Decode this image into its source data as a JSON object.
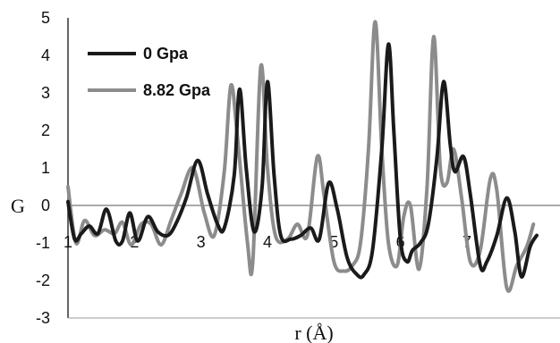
{
  "chart_data": {
    "type": "line",
    "title": "",
    "xlabel": "r (Å)",
    "ylabel": "G",
    "xlim": [
      1,
      8.4
    ],
    "ylim": [
      -3,
      5
    ],
    "x_ticks": [
      "1",
      "2",
      "3",
      "4",
      "5",
      "6",
      "7"
    ],
    "y_ticks": [
      "5",
      "4",
      "3",
      "2",
      "1",
      "0",
      "-1",
      "-2",
      "-3"
    ],
    "grid": false,
    "legend_position": "top-left",
    "series": [
      {
        "name": "0 Gpa",
        "color": "#1a1a1a",
        "points": [
          [
            1.0,
            0.1
          ],
          [
            1.1,
            -0.9
          ],
          [
            1.2,
            -0.75
          ],
          [
            1.32,
            -0.55
          ],
          [
            1.45,
            -0.75
          ],
          [
            1.58,
            -0.1
          ],
          [
            1.72,
            -0.95
          ],
          [
            1.82,
            -0.95
          ],
          [
            1.93,
            -0.2
          ],
          [
            2.05,
            -0.95
          ],
          [
            2.2,
            -0.3
          ],
          [
            2.35,
            -0.7
          ],
          [
            2.5,
            -0.8
          ],
          [
            2.62,
            -0.5
          ],
          [
            2.78,
            0.2
          ],
          [
            2.95,
            1.2
          ],
          [
            3.1,
            0.3
          ],
          [
            3.25,
            -0.5
          ],
          [
            3.35,
            -0.6
          ],
          [
            3.5,
            0.8
          ],
          [
            3.58,
            3.1
          ],
          [
            3.68,
            1.0
          ],
          [
            3.8,
            -0.7
          ],
          [
            3.92,
            0.5
          ],
          [
            4.0,
            3.3
          ],
          [
            4.1,
            0.8
          ],
          [
            4.2,
            -0.8
          ],
          [
            4.35,
            -0.9
          ],
          [
            4.5,
            -0.8
          ],
          [
            4.65,
            -0.6
          ],
          [
            4.78,
            -0.9
          ],
          [
            4.92,
            0.6
          ],
          [
            5.05,
            -0.1
          ],
          [
            5.2,
            -1.4
          ],
          [
            5.35,
            -1.85
          ],
          [
            5.45,
            -1.85
          ],
          [
            5.58,
            -1.2
          ],
          [
            5.72,
            1.5
          ],
          [
            5.82,
            4.3
          ],
          [
            5.9,
            2.0
          ],
          [
            6.0,
            -0.9
          ],
          [
            6.1,
            -1.5
          ],
          [
            6.18,
            -1.2
          ],
          [
            6.3,
            -1.0
          ],
          [
            6.42,
            -0.5
          ],
          [
            6.55,
            1.3
          ],
          [
            6.65,
            3.3
          ],
          [
            6.75,
            1.6
          ],
          [
            6.82,
            0.9
          ],
          [
            6.95,
            1.3
          ],
          [
            7.05,
            0.3
          ],
          [
            7.2,
            -1.6
          ],
          [
            7.3,
            -1.5
          ],
          [
            7.45,
            -0.8
          ],
          [
            7.6,
            0.2
          ],
          [
            7.72,
            -0.7
          ],
          [
            7.82,
            -1.9
          ],
          [
            7.95,
            -1.1
          ],
          [
            8.05,
            -0.8
          ]
        ]
      },
      {
        "name": "8.82 Gpa",
        "color": "#8c8c8c",
        "points": [
          [
            1.0,
            0.5
          ],
          [
            1.12,
            -1.0
          ],
          [
            1.25,
            -0.4
          ],
          [
            1.4,
            -0.8
          ],
          [
            1.55,
            -0.65
          ],
          [
            1.7,
            -0.75
          ],
          [
            1.82,
            -0.45
          ],
          [
            1.95,
            -1.05
          ],
          [
            2.1,
            -0.5
          ],
          [
            2.25,
            -0.5
          ],
          [
            2.4,
            -1.05
          ],
          [
            2.55,
            -0.4
          ],
          [
            2.7,
            0.3
          ],
          [
            2.88,
            1.0
          ],
          [
            3.05,
            -0.2
          ],
          [
            3.2,
            -0.8
          ],
          [
            3.35,
            0.9
          ],
          [
            3.45,
            3.2
          ],
          [
            3.55,
            1.8
          ],
          [
            3.7,
            -1.0
          ],
          [
            3.78,
            -1.5
          ],
          [
            3.9,
            3.7
          ],
          [
            4.0,
            1.0
          ],
          [
            4.12,
            -0.8
          ],
          [
            4.3,
            -0.9
          ],
          [
            4.45,
            -0.5
          ],
          [
            4.6,
            -0.8
          ],
          [
            4.75,
            1.3
          ],
          [
            4.85,
            0.3
          ],
          [
            5.0,
            -1.5
          ],
          [
            5.15,
            -1.75
          ],
          [
            5.28,
            -1.6
          ],
          [
            5.4,
            -1.0
          ],
          [
            5.52,
            1.5
          ],
          [
            5.62,
            4.9
          ],
          [
            5.72,
            1.5
          ],
          [
            5.82,
            -1.0
          ],
          [
            5.95,
            -1.6
          ],
          [
            6.05,
            -0.3
          ],
          [
            6.15,
            0.0
          ],
          [
            6.28,
            -1.7
          ],
          [
            6.4,
            0.5
          ],
          [
            6.5,
            4.5
          ],
          [
            6.6,
            1.0
          ],
          [
            6.7,
            0.6
          ],
          [
            6.8,
            1.5
          ],
          [
            6.92,
            0.2
          ],
          [
            7.05,
            -1.5
          ],
          [
            7.2,
            -1.2
          ],
          [
            7.35,
            0.7
          ],
          [
            7.45,
            0.4
          ],
          [
            7.6,
            -2.2
          ],
          [
            7.75,
            -1.6
          ],
          [
            7.9,
            -1.1
          ],
          [
            8.0,
            -0.5
          ]
        ]
      }
    ]
  }
}
